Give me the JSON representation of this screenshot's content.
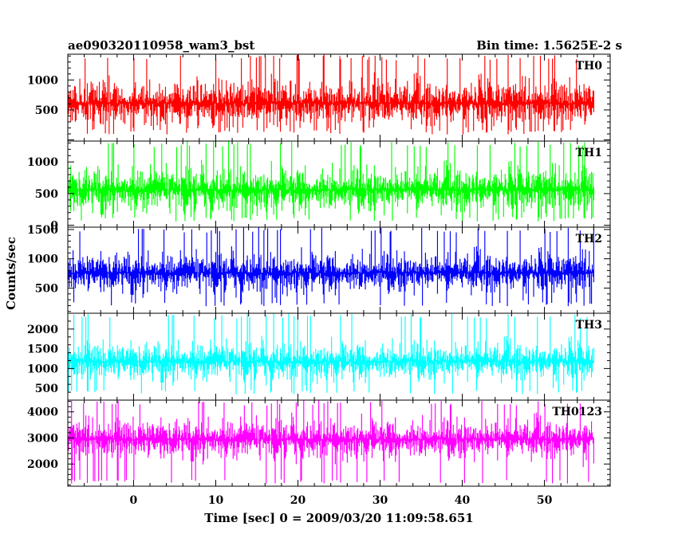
{
  "chart_data": {
    "type": "line",
    "title": "ae090320110958_wam3_bst",
    "subtitle": "Bin time: 1.5625E-2 s",
    "xlabel": "Time [sec] 0 = 2009/03/20 11:09:58.651",
    "ylabel": "Counts/sec",
    "xlim": [
      -8,
      58
    ],
    "x_ticks": [
      0,
      10,
      20,
      30,
      40,
      50
    ],
    "data_x_range": [
      -8,
      56
    ],
    "grid": false,
    "legend": "none",
    "panels": [
      {
        "name": "TH0",
        "color": "#ff0000",
        "ylim": [
          -20,
          1430
        ],
        "y_ticks": [
          500,
          1000
        ],
        "baseline": 610,
        "noise": 260,
        "min": 90,
        "max": 1430
      },
      {
        "name": "TH1",
        "color": "#00ff00",
        "ylim": [
          -30,
          1330
        ],
        "y_ticks": [
          0,
          500,
          1000
        ],
        "baseline": 560,
        "noise": 240,
        "min": 60,
        "max": 1330
      },
      {
        "name": "TH2",
        "color": "#0000ff",
        "ylim": [
          70,
          1540
        ],
        "y_ticks": [
          500,
          1000,
          1500
        ],
        "baseline": 760,
        "noise": 230,
        "min": 190,
        "max": 1540
      },
      {
        "name": "TH3",
        "color": "#00ffff",
        "ylim": [
          200,
          2400
        ],
        "y_ticks": [
          500,
          1000,
          1500,
          2000
        ],
        "baseline": 1180,
        "noise": 330,
        "min": 350,
        "max": 2400
      },
      {
        "name": "TH0123",
        "color": "#ff00ff",
        "ylim": [
          1150,
          4450
        ],
        "y_ticks": [
          2000,
          3000,
          4000
        ],
        "baseline": 2950,
        "noise": 520,
        "min": 1250,
        "max": 4450
      }
    ]
  }
}
